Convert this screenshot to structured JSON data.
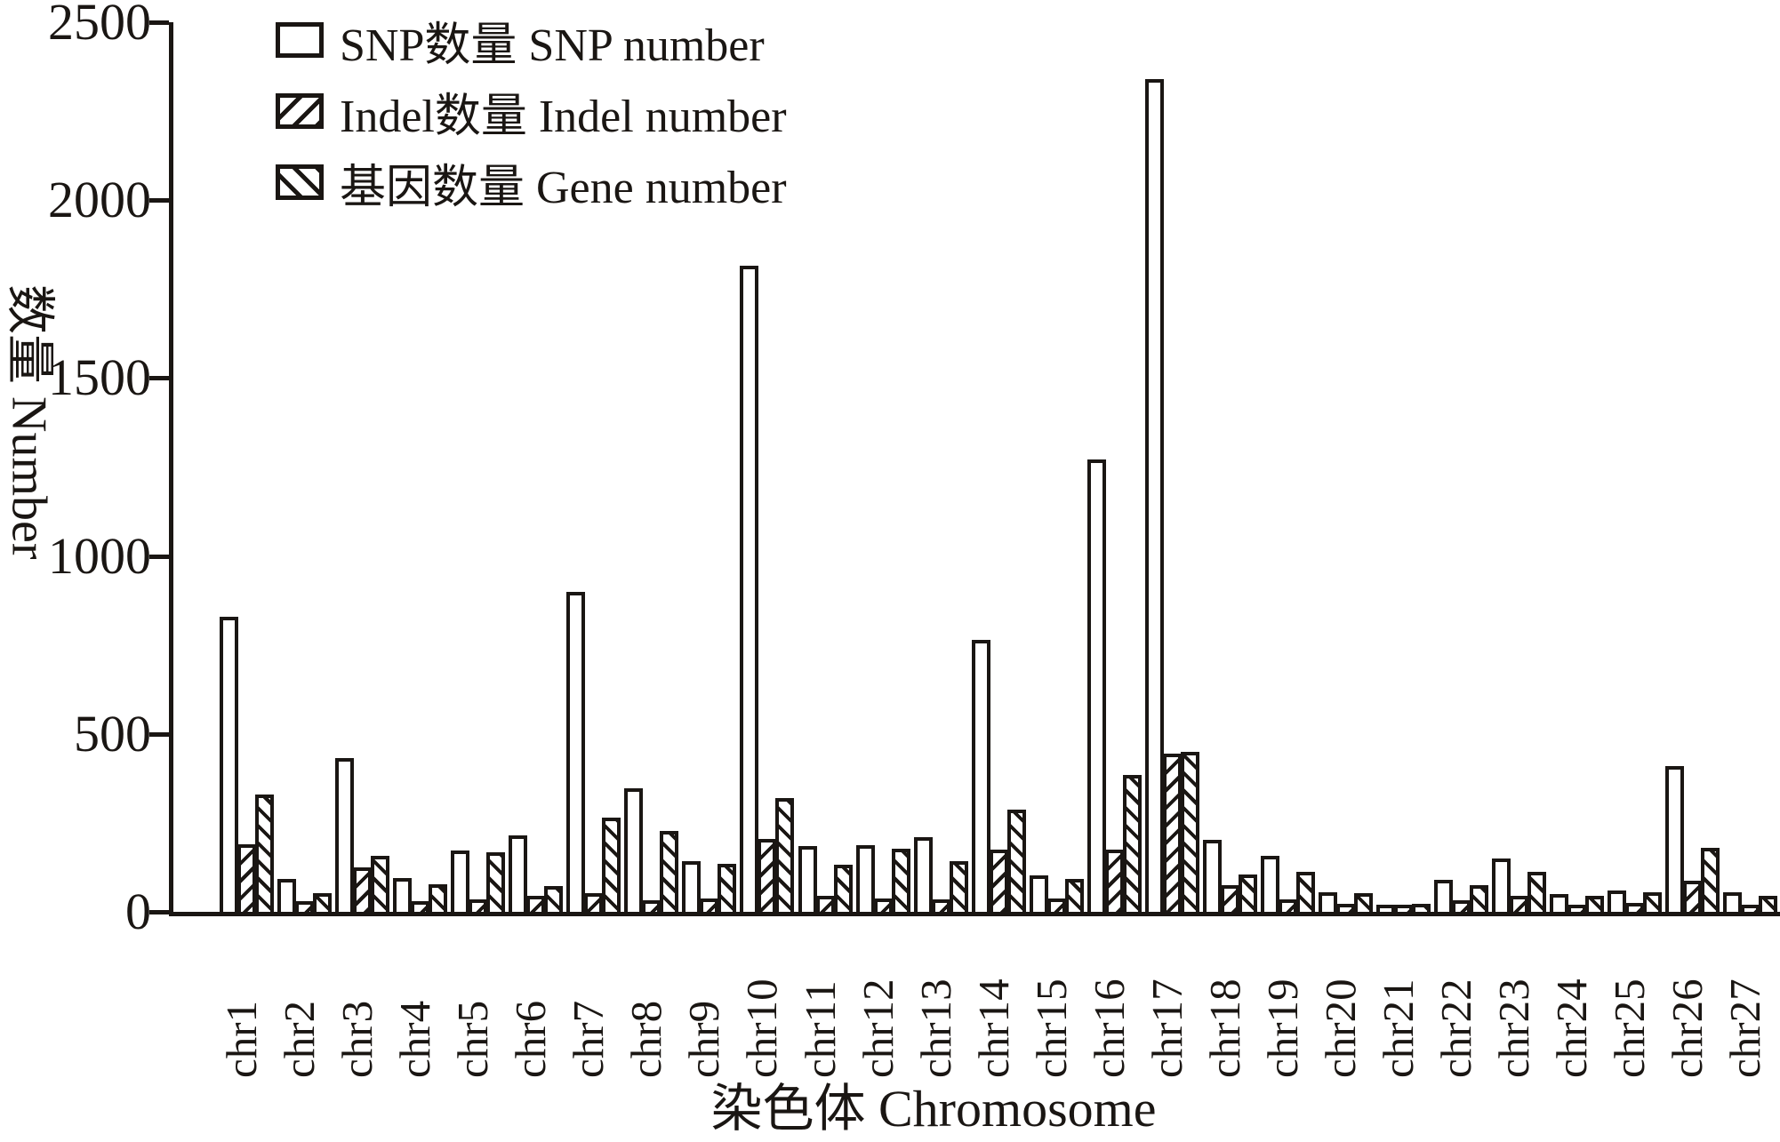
{
  "chart_data": {
    "type": "bar",
    "title": "",
    "xlabel": "染色体 Chromosome",
    "ylabel": "数量 Number",
    "ylim": [
      0,
      2500
    ],
    "yticks": [
      0,
      500,
      1000,
      1500,
      2000,
      2500
    ],
    "grid": false,
    "legend_position": "upper-left",
    "background_color": "#ffffff",
    "line_color": "#1a1613",
    "bar_fill": "#ffffff",
    "categories": [
      "chr1",
      "chr2",
      "chr3",
      "chr4",
      "chr5",
      "chr6",
      "chr7",
      "chr8",
      "chr9",
      "chr10",
      "chr11",
      "chr12",
      "chr13",
      "chr14",
      "chr15",
      "chr16",
      "chr17",
      "chr18",
      "chr19",
      "chr20",
      "chr21",
      "chr22",
      "chr23",
      "chr24",
      "chr25",
      "chr26",
      "chr27"
    ],
    "series": [
      {
        "name": "SNP数量 SNP number",
        "hatch": "none",
        "values": [
          830,
          92,
          432,
          95,
          172,
          215,
          900,
          348,
          142,
          1815,
          186,
          187,
          210,
          763,
          102,
          1270,
          2340,
          202,
          158,
          55,
          18,
          90,
          150,
          50,
          60,
          410,
          55
        ]
      },
      {
        "name": "Indel数量 Indel number",
        "hatch": "/",
        "values": [
          190,
          30,
          125,
          30,
          35,
          45,
          52,
          32,
          37,
          205,
          45,
          38,
          35,
          175,
          37,
          175,
          445,
          75,
          35,
          22,
          12,
          32,
          45,
          20,
          25,
          87,
          20
        ]
      },
      {
        "name": "基因数量 Gene number",
        "hatch": "\\",
        "values": [
          330,
          52,
          158,
          77,
          168,
          72,
          265,
          227,
          136,
          320,
          133,
          178,
          142,
          287,
          92,
          385,
          450,
          106,
          112,
          53,
          22,
          75,
          112,
          45,
          55,
          180,
          45
        ]
      }
    ]
  }
}
